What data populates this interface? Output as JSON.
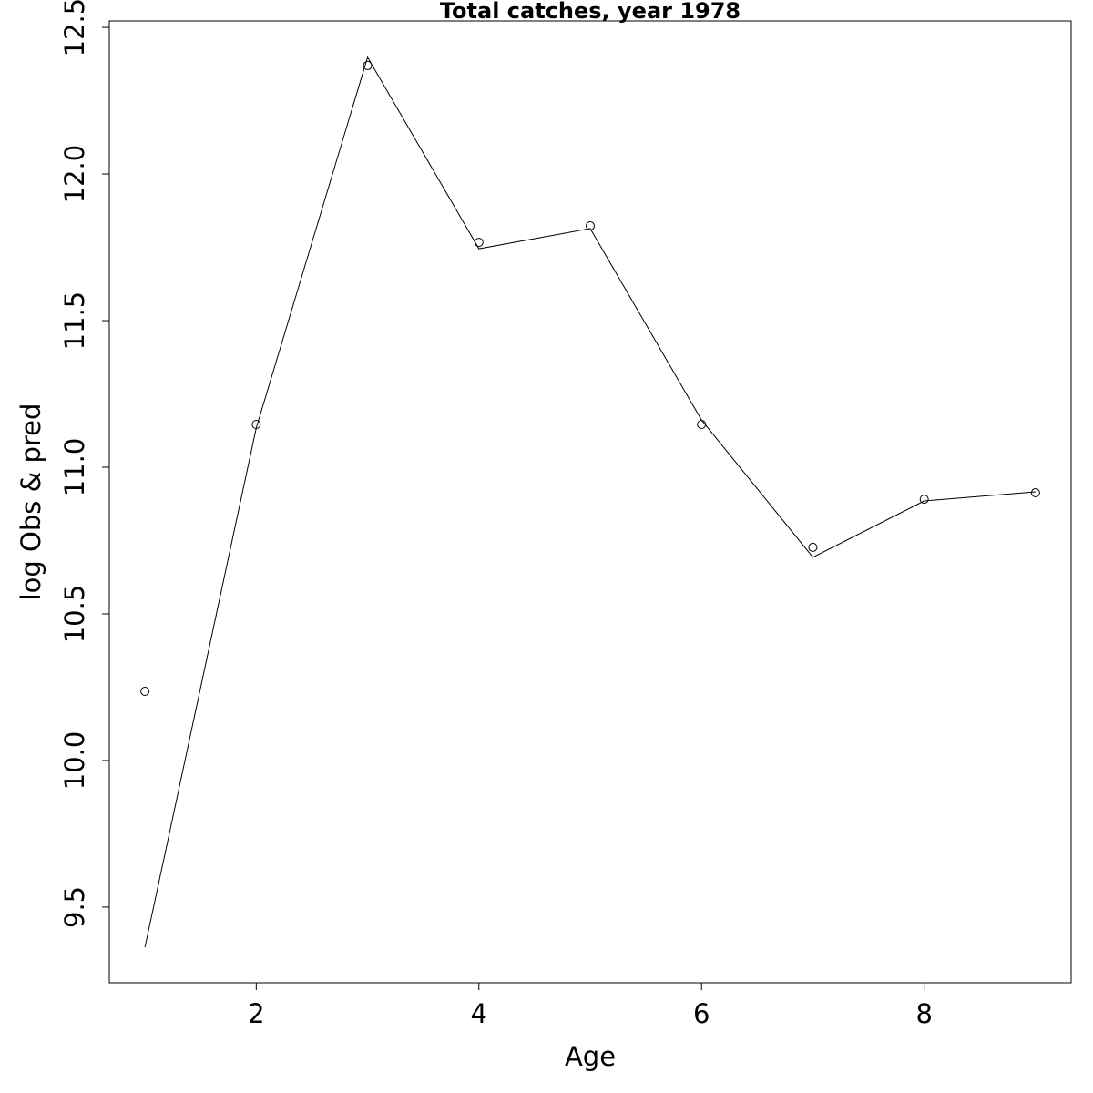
{
  "chart_data": {
    "type": "line",
    "title": "Total catches, year 1978",
    "xlabel": "Age",
    "ylabel": "log Obs & pred",
    "x": [
      1,
      2,
      3,
      4,
      5,
      6,
      7,
      8,
      9
    ],
    "series": [
      {
        "style": "points",
        "color": "#000000",
        "values": [
          10.236,
          11.146,
          12.37,
          11.767,
          11.823,
          11.146,
          10.727,
          10.891,
          10.913
        ]
      },
      {
        "style": "line",
        "color": "#000000",
        "values": [
          9.363,
          11.134,
          12.398,
          11.745,
          11.814,
          11.161,
          10.693,
          10.885,
          10.916
        ]
      }
    ],
    "xlim": [
      0.68,
      9.32
    ],
    "xticks": [
      2,
      4,
      6,
      8
    ],
    "ylim": [
      9.242,
      12.522
    ],
    "yticks": [
      9.5,
      {
        "value": 10,
        "label": "10.0"
      },
      10.5,
      {
        "value": 11,
        "label": "11.0"
      },
      11.5,
      {
        "value": 12,
        "label": "12.0"
      },
      12.5
    ],
    "grid": false
  }
}
